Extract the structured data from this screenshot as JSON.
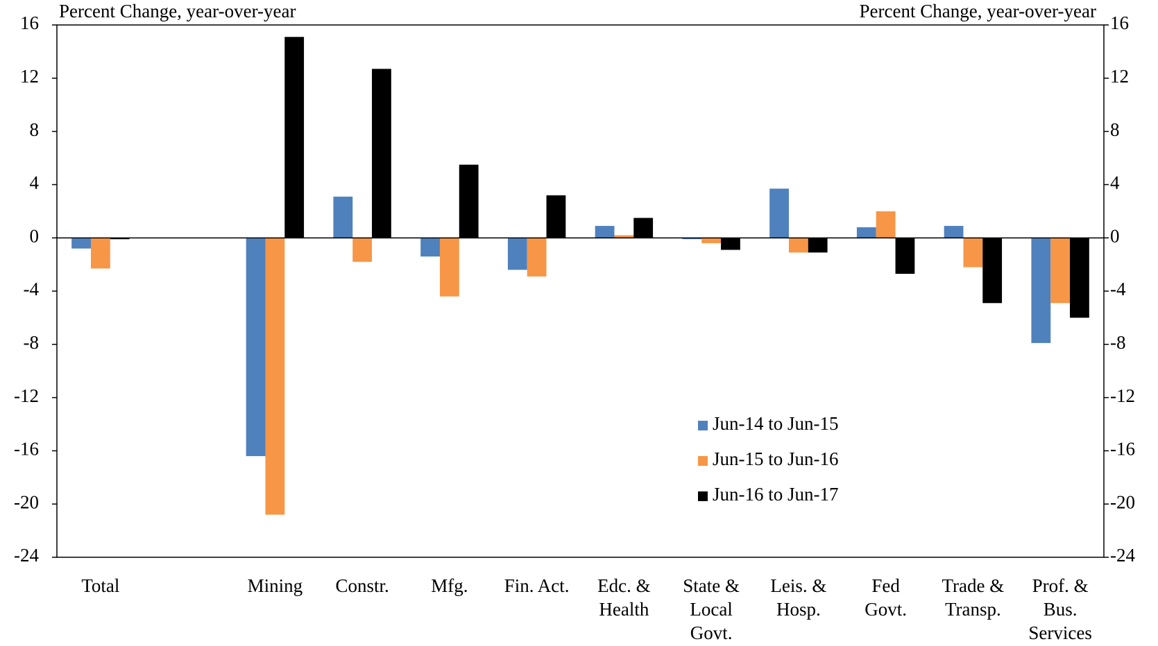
{
  "chart_data": {
    "type": "bar",
    "y_label": "Percent Change, year-over-year",
    "y2_label": "Percent Change, year-over-year",
    "categories": [
      "Total",
      null,
      "Mining",
      "Constr.",
      "Mfg.",
      "Fin. Act.",
      "Edc. &\nHealth",
      "State &\nLocal\nGovt.",
      "Leis. &\nHosp.",
      "Fed\nGovt.",
      "Trade &\nTransp.",
      "Prof. &\nBus.\nServices"
    ],
    "series": [
      {
        "name": "Jun-14 to Jun-15",
        "color": "#4f81bd",
        "values": [
          -0.8,
          null,
          -16.4,
          3.1,
          -1.4,
          -2.4,
          0.9,
          -0.1,
          3.7,
          0.8,
          0.9,
          -7.9
        ]
      },
      {
        "name": "Jun-15 to Jun-16",
        "color": "#f79646",
        "values": [
          -2.3,
          null,
          -20.8,
          -1.8,
          -4.4,
          -2.9,
          0.2,
          -0.4,
          -1.1,
          2.0,
          -2.2,
          -4.9
        ]
      },
      {
        "name": "Jun-16 to Jun-17",
        "color": "#000000",
        "values": [
          -0.1,
          null,
          15.1,
          12.7,
          5.5,
          3.2,
          1.5,
          -0.9,
          -1.1,
          -2.7,
          -4.9,
          -6.0
        ]
      }
    ],
    "ylim": [
      -24,
      16
    ],
    "yticks": [
      -24,
      -20,
      -16,
      -12,
      -8,
      -4,
      0,
      4,
      8,
      12,
      16
    ],
    "y2lim": [
      -24,
      16
    ],
    "y2ticks": [
      -24,
      -20,
      -16,
      -12,
      -8,
      -4,
      0,
      4,
      8,
      12,
      16
    ],
    "legend": "lower center",
    "grid": false
  }
}
